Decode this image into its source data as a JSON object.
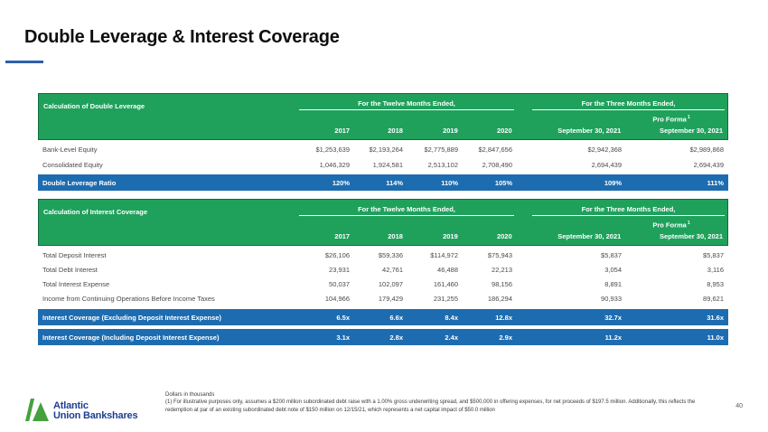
{
  "page": {
    "title": "Double Leverage & Interest Coverage",
    "page_number": "40"
  },
  "colors": {
    "header_green": "#1fa15c",
    "header_green_border": "#0f6b3c",
    "highlight_blue": "#1e6cb0",
    "title_underline_blue": "#2d5fa8",
    "logo_blue": "#1e3e93",
    "logo_green": "#44a13e"
  },
  "table_headers": {
    "group_twelve": "For the Twelve Months Ended,",
    "group_three": "For the Three Months Ended,",
    "pro_forma": "Pro Forma",
    "pro_forma_sup": "1",
    "years": [
      "2017",
      "2018",
      "2019",
      "2020"
    ],
    "sept": "September 30, 2021",
    "sept_pro_forma": "September 30, 2021"
  },
  "double_leverage": {
    "title": "Calculation of Double Leverage",
    "rows": [
      {
        "label": "Bank-Level Equity",
        "values": [
          "$1,253,639",
          "$2,193,264",
          "$2,775,889",
          "$2,847,656",
          "$2,942,368",
          "$2,989,868"
        ]
      },
      {
        "label": "Consolidated Equity",
        "values": [
          "1,046,329",
          "1,924,581",
          "2,513,102",
          "2,708,490",
          "2,694,439",
          "2,694,439"
        ]
      }
    ],
    "ratio_row": {
      "label": "Double Leverage Ratio",
      "values": [
        "120%",
        "114%",
        "110%",
        "105%",
        "109%",
        "111%"
      ]
    }
  },
  "interest_coverage": {
    "title": "Calculation of Interest Coverage",
    "rows": [
      {
        "label": "Total Deposit Interest",
        "values": [
          "$26,106",
          "$59,336",
          "$114,972",
          "$75,943",
          "$5,837",
          "$5,837"
        ]
      },
      {
        "label": "Total Debt Interest",
        "values": [
          "23,931",
          "42,761",
          "46,488",
          "22,213",
          "3,054",
          "3,116"
        ]
      },
      {
        "label": "Total Interest Expense",
        "values": [
          "50,037",
          "102,097",
          "161,460",
          "98,156",
          "8,891",
          "8,953"
        ]
      },
      {
        "label": "Income from Continuing Operations Before Income Taxes",
        "values": [
          "104,966",
          "179,429",
          "231,255",
          "186,294",
          "90,933",
          "89,621"
        ]
      }
    ],
    "ratio_rows": [
      {
        "label": "Interest Coverage (Excluding Deposit Interest Expense)",
        "values": [
          "6.5x",
          "6.6x",
          "8.4x",
          "12.8x",
          "32.7x",
          "31.6x"
        ]
      },
      {
        "label": "Interest Coverage (Including Deposit Interest Expense)",
        "values": [
          "3.1x",
          "2.8x",
          "2.4x",
          "2.9x",
          "11.2x",
          "11.0x"
        ]
      }
    ]
  },
  "footnotes": {
    "line1": "Dollars in thousands",
    "line2": "(1) For illustrative purposes only, assumes a $200 million  subordinated debt raise  with a 1.00% gross underwriting spread, and $500,000 in  offering expenses, for net proceeds of $197.5 million.  Additionally, this reflects the redemption  at par of an existing subordinated debt note of $150 million  on 12/15/21, which represents a net capital impact of $50.0 million"
  },
  "logo": {
    "line1": "Atlantic",
    "line2": "Union Bankshares"
  }
}
